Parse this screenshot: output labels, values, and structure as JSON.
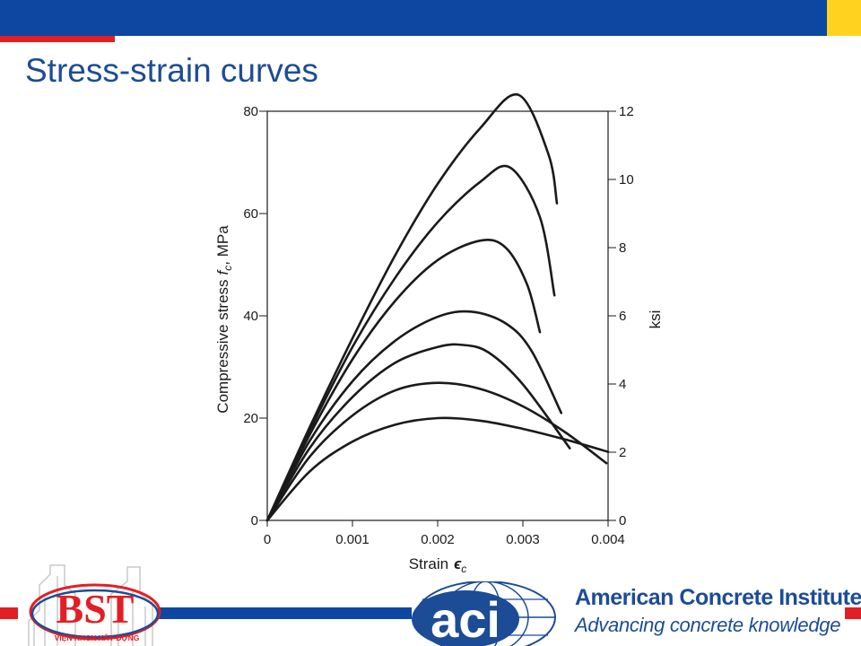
{
  "slide": {
    "title": "Stress-strain curves",
    "colors": {
      "primary_blue": "#0d47a1",
      "accent_red": "#e31e24",
      "accent_yellow": "#ffd21f",
      "title_blue": "#1c4c96"
    }
  },
  "chart_data": {
    "type": "line",
    "xlabel": "Strain",
    "xlabel_symbol": "ϵ",
    "xlabel_subscript": "c",
    "ylabel": "Compressive stress",
    "ylabel_symbol": "f",
    "ylabel_subscript": "c",
    "ylabel_unit": ", MPa",
    "y2label": "ksi",
    "xlim": [
      0,
      0.004
    ],
    "ylim": [
      0,
      80
    ],
    "y2lim": [
      0,
      12
    ],
    "x_ticks": [
      0,
      0.001,
      0.002,
      0.003,
      0.004
    ],
    "x_tick_labels": [
      "0",
      "0.001",
      "0.002",
      "0.003",
      "0.004"
    ],
    "y_ticks": [
      0,
      20,
      40,
      60,
      80
    ],
    "y_tick_labels": [
      "0",
      "20",
      "40",
      "60",
      "80"
    ],
    "y2_ticks": [
      0,
      2,
      4,
      6,
      8,
      10,
      12
    ],
    "y2_tick_labels": [
      "0",
      "2",
      "4",
      "6",
      "8",
      "10",
      "12"
    ],
    "grid": false,
    "series": [
      {
        "x": [
          0,
          0.0005,
          0.001,
          0.0015,
          0.002,
          0.0025,
          0.003,
          0.0035,
          0.004
        ],
        "y": [
          0,
          9.6,
          15.4,
          18.7,
          20.0,
          19.5,
          17.9,
          15.8,
          13.4
        ]
      },
      {
        "x": [
          0,
          0.0005,
          0.001,
          0.0015,
          0.002,
          0.0025,
          0.003,
          0.0035,
          0.00398
        ],
        "y": [
          0,
          12.5,
          20.5,
          25.4,
          26.9,
          25.7,
          22.3,
          17.2,
          11.2
        ]
      },
      {
        "x": [
          0,
          0.0005,
          0.001,
          0.0015,
          0.002,
          0.0023,
          0.0026,
          0.003,
          0.00355
        ],
        "y": [
          0,
          14.2,
          24.1,
          30.8,
          33.9,
          34.3,
          32.8,
          26.6,
          14.1
        ]
      },
      {
        "x": [
          0,
          0.0005,
          0.001,
          0.0015,
          0.002,
          0.0024,
          0.0028,
          0.0031,
          0.00345
        ],
        "y": [
          0,
          15.6,
          27.2,
          35.1,
          39.8,
          40.8,
          38.5,
          33.2,
          21.0
        ]
      },
      {
        "x": [
          0,
          0.0005,
          0.001,
          0.0015,
          0.002,
          0.0025,
          0.0028,
          0.00305,
          0.0032
        ],
        "y": [
          0,
          16.8,
          31.5,
          42.9,
          50.9,
          54.7,
          53.3,
          46.1,
          36.8
        ]
      },
      {
        "x": [
          0,
          0.0005,
          0.001,
          0.0015,
          0.002,
          0.0025,
          0.00285,
          0.0032,
          0.00337
        ],
        "y": [
          0,
          17.6,
          33.9,
          47.4,
          58.3,
          66.2,
          69.0,
          59.3,
          44.0
        ]
      },
      {
        "x": [
          0,
          0.0005,
          0.001,
          0.0015,
          0.002,
          0.0025,
          0.00295,
          0.0033,
          0.0034
        ],
        "y": [
          0,
          18.3,
          35.6,
          51.8,
          65.8,
          76.7,
          83.2,
          71.6,
          62.0
        ]
      }
    ]
  },
  "logos": {
    "bst_caption": "VIỆN KHCN XÂY DỰNG",
    "bst_letters": "BST",
    "aci_text": "aci",
    "org_name": "American Concrete Institute",
    "registered": "®",
    "tagline": "Advancing concrete knowledge"
  }
}
